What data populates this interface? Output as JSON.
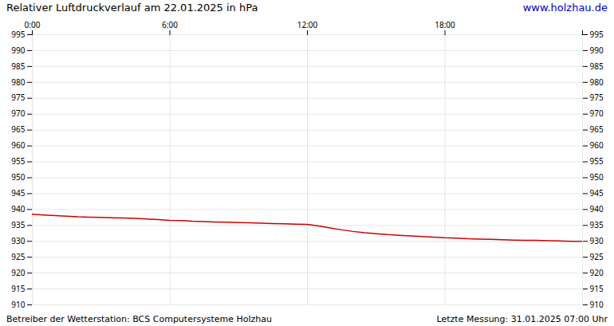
{
  "chart_data": {
    "type": "line",
    "title": "Relativer Luftdruckverlauf am 22.01.2025 in hPa",
    "annotations": [
      "www.holzhau.de",
      "Betreiber der Wetterstation: BCS Computersysteme Holzhau",
      "Letzte Messung: 31.01.2025 07:00 Uhr"
    ],
    "x": [
      0,
      0.5,
      1,
      1.5,
      2,
      2.5,
      3,
      3.5,
      4,
      4.5,
      5,
      5.5,
      6,
      6.5,
      7,
      7.5,
      8,
      8.5,
      9,
      9.5,
      10,
      10.5,
      11,
      11.5,
      12,
      12.5,
      13,
      13.5,
      14,
      14.5,
      15,
      15.5,
      16,
      16.5,
      17,
      17.5,
      18,
      18.5,
      19,
      19.5,
      20,
      20.5,
      21,
      21.5,
      22,
      22.5,
      23,
      23.5,
      24
    ],
    "values": [
      938.5,
      938.3,
      938.1,
      937.9,
      937.7,
      937.6,
      937.5,
      937.4,
      937.3,
      937.2,
      937.0,
      936.8,
      936.6,
      936.5,
      936.3,
      936.2,
      936.1,
      936.0,
      935.9,
      935.8,
      935.7,
      935.6,
      935.5,
      935.4,
      935.3,
      934.8,
      934.2,
      933.6,
      933.1,
      932.7,
      932.4,
      932.1,
      931.9,
      931.7,
      931.5,
      931.3,
      931.1,
      931.0,
      930.8,
      930.7,
      930.6,
      930.5,
      930.4,
      930.3,
      930.3,
      930.2,
      930.1,
      930.0,
      930.0
    ],
    "color": "#cc0000",
    "xlim": [
      0,
      24
    ],
    "xticks": [
      {
        "value": 0,
        "label": "0:00"
      },
      {
        "value": 6,
        "label": "6:00"
      },
      {
        "value": 12,
        "label": "12:00"
      },
      {
        "value": 18,
        "label": "18:00"
      },
      {
        "value": 24,
        "label": null
      }
    ],
    "ylim": [
      910,
      995
    ],
    "yticks": [
      910,
      915,
      920,
      925,
      930,
      935,
      940,
      945,
      950,
      955,
      960,
      965,
      970,
      975,
      980,
      985,
      990,
      995
    ],
    "grid": true
  }
}
